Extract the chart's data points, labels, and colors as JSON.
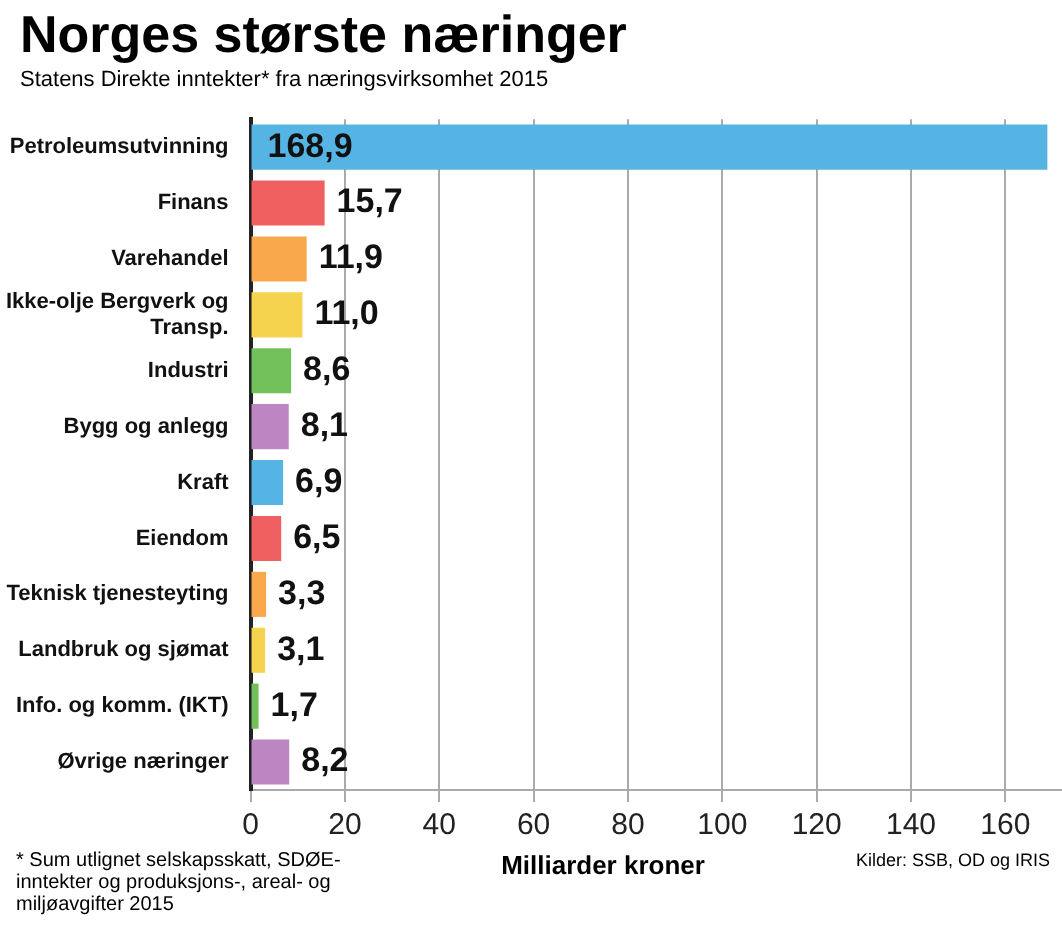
{
  "chart_data": {
    "type": "bar",
    "orientation": "horizontal",
    "title": "Norges største næringer",
    "subtitle": "Statens Direkte inntekter* fra næringsvirksomhet 2015",
    "xlabel": "Milliarder kroner",
    "categories": [
      "Petroleumsutvinning",
      "Finans",
      "Varehandel",
      "Ikke-olje Bergverk og Transp.",
      "Industri",
      "Bygg og anlegg",
      "Kraft",
      "Eiendom",
      "Teknisk tjenesteyting",
      "Landbruk og sjømat",
      "Info. og komm. (IKT)",
      "Øvrige næringer"
    ],
    "values": [
      168.9,
      15.7,
      11.9,
      11.0,
      8.6,
      8.1,
      6.9,
      6.5,
      3.3,
      3.1,
      1.7,
      8.2
    ],
    "value_labels": [
      "168,9",
      "15,7",
      "11,9",
      "11,0",
      "8,6",
      "8,1",
      "6,9",
      "6,5",
      "3,3",
      "3,1",
      "1,7",
      "8,2"
    ],
    "colors": [
      "#56b4e5",
      "#f06060",
      "#f9a94b",
      "#f6d34f",
      "#72c15a",
      "#bb86c1",
      "#56b4e5",
      "#f06060",
      "#f9a94b",
      "#f6d34f",
      "#72c15a",
      "#bb86c1"
    ],
    "xlim": [
      0,
      172
    ],
    "xticks": [
      0,
      20,
      40,
      60,
      80,
      100,
      120,
      140,
      160
    ],
    "grid": "x",
    "legend": false,
    "annotations": [
      "* Sum utlignet selskapsskatt, SDØE-inntekter og produksjons-, areal- og miljøavgifter 2015",
      "Kilder: SSB, OD og IRIS"
    ]
  }
}
